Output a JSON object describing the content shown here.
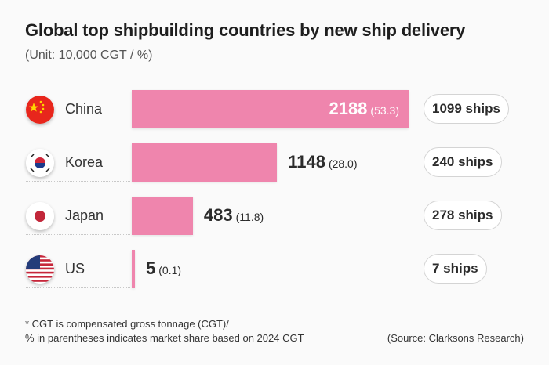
{
  "title": "Global top shipbuilding countries by new ship delivery",
  "subtitle": "(Unit: 10,000 CGT / %)",
  "chart_data": {
    "type": "bar",
    "orientation": "horizontal",
    "categories": [
      "China",
      "Korea",
      "Japan",
      "US"
    ],
    "values": [
      2188,
      1148,
      483,
      5
    ],
    "shares": [
      "(53.3)",
      "(28.0)",
      "(11.8)",
      "(0.1)"
    ],
    "ships": [
      "1099 ships",
      "240 ships",
      "278 ships",
      "7 ships"
    ],
    "bar_color": "#ef85ad"
  },
  "note_line1": "* CGT is compensated gross tonnage (CGT)/",
  "note_line2": "% in parentheses indicates market share based on 2024 CGT",
  "source": "(Source: Clarksons Research)"
}
